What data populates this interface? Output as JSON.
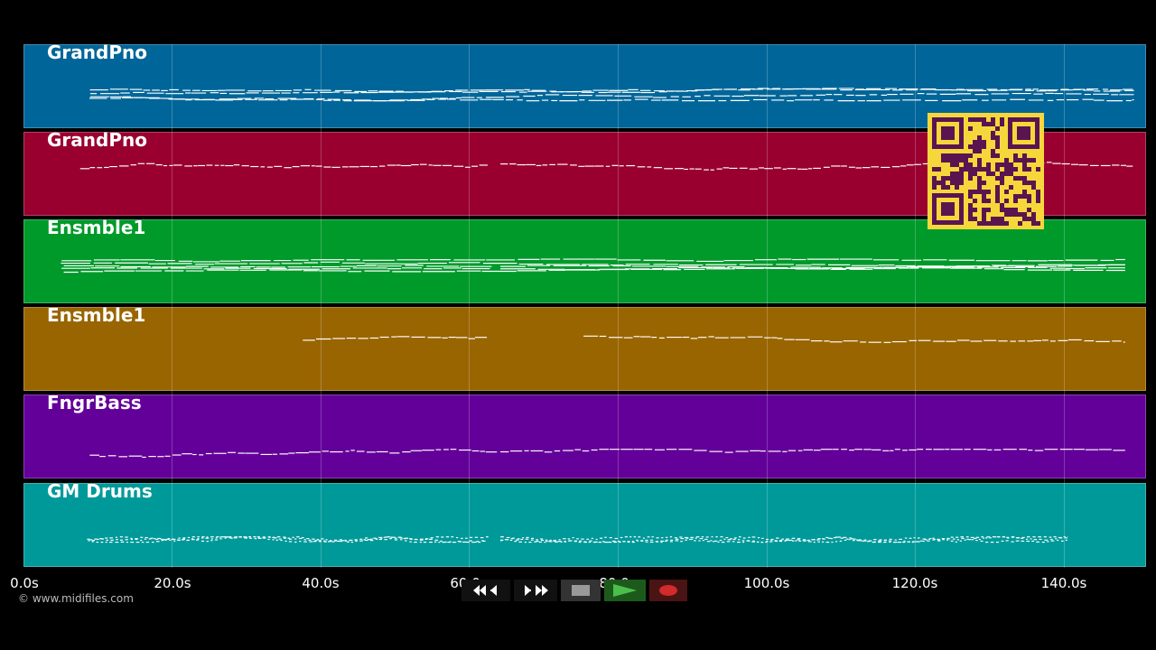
{
  "tracks": [
    {
      "name": "GrandPno",
      "color": "#006699"
    },
    {
      "name": "GrandPno",
      "color": "#990030"
    },
    {
      "name": "Ensmble1",
      "color": "#009a2b"
    },
    {
      "name": "Ensmble1",
      "color": "#996500"
    },
    {
      "name": "FngrBass",
      "color": "#630099"
    },
    {
      "name": "GM Drums",
      "color": "#00999a"
    }
  ],
  "timeline": {
    "ticks": [
      "0.0s",
      "20.0s",
      "40.0s",
      "60.0s",
      "80.0s",
      "100.0s",
      "120.0s",
      "140.0s"
    ]
  },
  "copyright": "© www.midifiles.com",
  "transport": {
    "rewind_icon": "rewind-icon",
    "fastforward_icon": "fast-forward-icon",
    "stop_icon": "stop-icon",
    "play_icon": "play-icon",
    "record_icon": "record-icon"
  },
  "qr": {
    "color": "#f6d73b",
    "ink": "#5a1450"
  }
}
